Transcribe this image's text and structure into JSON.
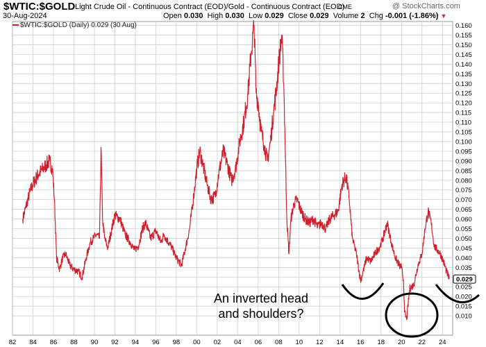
{
  "header": {
    "ticker": "$WTIC:$GOLD",
    "description": "Light Crude Oil - Continuous Contract (EOD)/Gold - Continuous Contract (EOD)",
    "exchange": "CME",
    "date": "30-Aug-2024",
    "source": "@ StockCharts.com",
    "open_label": "Open",
    "open_value": "0.030",
    "high_label": "High",
    "high_value": "0.030",
    "low_label": "Low",
    "low_value": "0.029",
    "close_label": "Close",
    "close_value": "0.029",
    "volume_label": "Volume",
    "volume_value": "2",
    "chg_label": "Chg",
    "chg_value": "-0.001 (-1.86%)"
  },
  "legend": {
    "text": "$WTIC:$GOLD (Daily) 0.029 (30 Aug)"
  },
  "annotation": {
    "line1": "An inverted head",
    "line2": "and shoulders?"
  },
  "colors": {
    "series": "#d0202e",
    "grid": "#c8c8c8",
    "marker_bg": "#ffffff"
  },
  "chart_data": {
    "type": "line",
    "title": "$WTIC:$GOLD",
    "xlabel": "",
    "ylabel": "",
    "y_axis_side": "right",
    "ylim": [
      0.0,
      0.162
    ],
    "xlim": [
      1982.0,
      2025.0
    ],
    "y_ticks": [
      "0.010",
      "0.015",
      "0.020",
      "0.025",
      "0.030",
      "0.035",
      "0.040",
      "0.045",
      "0.050",
      "0.055",
      "0.060",
      "0.065",
      "0.070",
      "0.075",
      "0.080",
      "0.085",
      "0.090",
      "0.095",
      "0.100",
      "0.105",
      "0.110",
      "0.115",
      "0.120",
      "0.125",
      "0.130",
      "0.135",
      "0.140",
      "0.145",
      "0.150",
      "0.155",
      "0.160"
    ],
    "x_ticks": [
      "82",
      "84",
      "86",
      "88",
      "90",
      "92",
      "94",
      "96",
      "98",
      "00",
      "02",
      "04",
      "06",
      "08",
      "10",
      "12",
      "14",
      "16",
      "18",
      "20",
      "22",
      "24"
    ],
    "last_value_label": "0.029",
    "grid": true,
    "legend": "top-left",
    "series": [
      {
        "name": "$WTIC:$GOLD (Daily)",
        "x": [
          1983.0,
          1983.3,
          1983.7,
          1984.0,
          1984.5,
          1985.0,
          1985.3,
          1985.6,
          1985.9,
          1986.1,
          1986.3,
          1986.6,
          1986.9,
          1987.2,
          1987.6,
          1988.0,
          1988.4,
          1988.8,
          1989.2,
          1989.6,
          1989.9,
          1990.2,
          1990.5,
          1990.65,
          1990.8,
          1991.0,
          1991.3,
          1991.7,
          1992.0,
          1992.5,
          1993.0,
          1993.5,
          1993.9,
          1994.3,
          1994.7,
          1995.0,
          1995.5,
          1996.0,
          1996.5,
          1996.8,
          1997.0,
          1997.5,
          1998.0,
          1998.5,
          1998.9,
          1999.3,
          1999.7,
          2000.0,
          2000.3,
          2000.6,
          2001.0,
          2001.4,
          2001.8,
          2002.2,
          2002.6,
          2003.0,
          2003.4,
          2003.8,
          2004.2,
          2004.6,
          2005.0,
          2005.3,
          2005.6,
          2005.8,
          2006.0,
          2006.3,
          2006.6,
          2006.9,
          2007.2,
          2007.5,
          2007.8,
          2008.0,
          2008.3,
          2008.5,
          2008.8,
          2009.0,
          2009.2,
          2009.5,
          2009.8,
          2010.2,
          2010.6,
          2011.0,
          2011.4,
          2011.8,
          2012.2,
          2012.6,
          2013.0,
          2013.4,
          2013.8,
          2014.2,
          2014.6,
          2014.9,
          2015.2,
          2015.6,
          2016.0,
          2016.3,
          2016.6,
          2017.0,
          2017.4,
          2017.8,
          2018.2,
          2018.6,
          2019.0,
          2019.4,
          2019.8,
          2020.0,
          2020.2,
          2020.3,
          2020.5,
          2020.8,
          2021.2,
          2021.6,
          2022.0,
          2022.3,
          2022.6,
          2022.9,
          2023.2,
          2023.5,
          2023.8,
          2024.1,
          2024.4,
          2024.66
        ],
        "values": [
          0.06,
          0.066,
          0.074,
          0.078,
          0.083,
          0.086,
          0.088,
          0.09,
          0.086,
          0.07,
          0.04,
          0.034,
          0.04,
          0.042,
          0.036,
          0.034,
          0.033,
          0.03,
          0.04,
          0.048,
          0.05,
          0.052,
          0.05,
          0.097,
          0.06,
          0.05,
          0.045,
          0.055,
          0.062,
          0.06,
          0.052,
          0.048,
          0.044,
          0.046,
          0.055,
          0.058,
          0.05,
          0.054,
          0.048,
          0.052,
          0.05,
          0.046,
          0.04,
          0.036,
          0.045,
          0.055,
          0.072,
          0.086,
          0.095,
          0.088,
          0.078,
          0.07,
          0.072,
          0.085,
          0.095,
          0.088,
          0.08,
          0.086,
          0.1,
          0.11,
          0.125,
          0.145,
          0.16,
          0.125,
          0.12,
          0.105,
          0.098,
          0.09,
          0.1,
          0.115,
          0.128,
          0.14,
          0.155,
          0.13,
          0.06,
          0.042,
          0.06,
          0.068,
          0.07,
          0.064,
          0.06,
          0.058,
          0.06,
          0.056,
          0.058,
          0.055,
          0.06,
          0.062,
          0.064,
          0.078,
          0.082,
          0.07,
          0.05,
          0.042,
          0.028,
          0.034,
          0.04,
          0.038,
          0.042,
          0.045,
          0.05,
          0.058,
          0.048,
          0.04,
          0.036,
          0.035,
          0.028,
          0.012,
          0.008,
          0.024,
          0.026,
          0.036,
          0.042,
          0.055,
          0.064,
          0.058,
          0.046,
          0.044,
          0.042,
          0.038,
          0.033,
          0.029
        ]
      }
    ]
  }
}
